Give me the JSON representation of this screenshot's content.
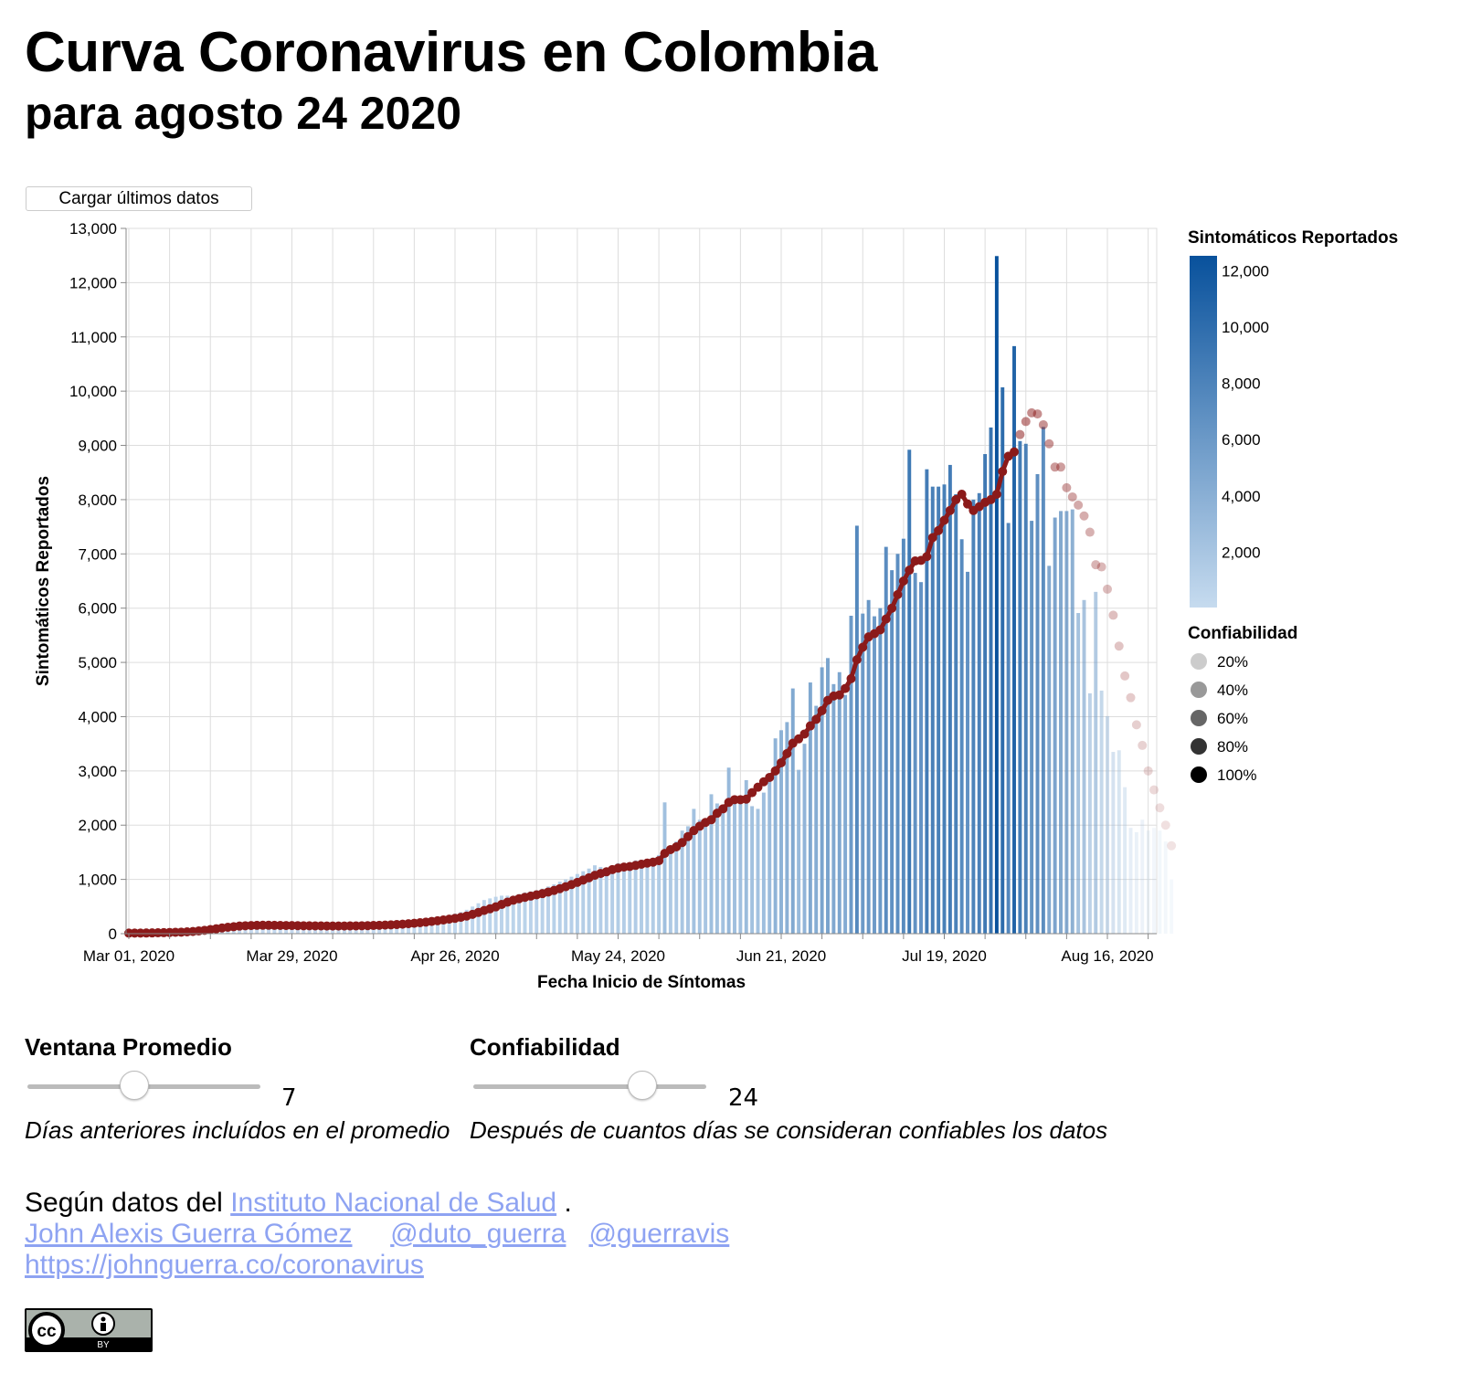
{
  "header": {
    "title": "Curva Coronavirus en Colombia",
    "subtitle": "para agosto 24 2020"
  },
  "toolbar": {
    "load_label": "Cargar últimos datos"
  },
  "controls": {
    "window": {
      "title": "Ventana Promedio",
      "value": "7",
      "level": 0.45,
      "description": "Días anteriores incluídos en el promedio"
    },
    "reliability": {
      "title": "Confiabilidad",
      "value": "24",
      "level": 0.75,
      "description": "Después de cuantos días se consideran confiables los datos"
    }
  },
  "footer": {
    "source_prefix": "Según datos del",
    "source_link": "Instituto Nacional de Salud",
    "source_suffix": ".",
    "author_link": "John Alexis Guerra Gómez",
    "twitter1": "@duto_guerra",
    "twitter2": "@guerravis",
    "site_link": "https://johnguerra.co/coronavirus",
    "license_label": "BY"
  },
  "chart_data": {
    "type": "bar",
    "xlabel": "Fecha Inicio de Síntomas",
    "ylabel": "Sintomáticos Reportados",
    "ylim": [
      0,
      13000
    ],
    "y_ticks": [
      0,
      1000,
      2000,
      3000,
      4000,
      5000,
      6000,
      7000,
      8000,
      9000,
      10000,
      11000,
      12000,
      13000
    ],
    "x_start": "2020-03-01",
    "x_end": "2020-08-24",
    "x_tick_labels": [
      "Mar 01, 2020",
      "Mar 29, 2020",
      "Apr 26, 2020",
      "May 24, 2020",
      "Jun 21, 2020",
      "Jul 19, 2020",
      "Aug 16, 2020"
    ],
    "x_tick_dates": [
      "2020-03-01",
      "2020-03-29",
      "2020-04-26",
      "2020-05-24",
      "2020-06-21",
      "2020-07-19",
      "2020-08-16"
    ],
    "grid": true,
    "reliable_until": "2020-07-31",
    "series": [
      {
        "name": "Sintomáticos Reportados",
        "values": [
          10,
          10,
          10,
          15,
          20,
          20,
          25,
          30,
          35,
          40,
          50,
          70,
          90,
          110,
          120,
          130,
          140,
          145,
          150,
          155,
          160,
          160,
          160,
          155,
          150,
          150,
          150,
          148,
          145,
          145,
          140,
          140,
          140,
          140,
          140,
          140,
          145,
          145,
          150,
          150,
          155,
          160,
          165,
          170,
          180,
          190,
          200,
          210,
          220,
          235,
          250,
          265,
          280,
          300,
          320,
          340,
          370,
          400,
          440,
          500,
          560,
          620,
          650,
          680,
          700,
          700,
          700,
          730,
          760,
          780,
          800,
          830,
          870,
          910,
          960,
          1000,
          1050,
          1100,
          1150,
          1200,
          1260,
          1230,
          1200,
          1250,
          1300,
          1280,
          1300,
          1350,
          1360,
          1380,
          1400,
          1450,
          2420,
          1600,
          1700,
          1900,
          1980,
          2300,
          2100,
          2000,
          2570,
          2400,
          2300,
          3060,
          2500,
          2450,
          2830,
          2350,
          2300,
          2600,
          2900,
          3600,
          3750,
          3900,
          4520,
          3020,
          3500,
          4630,
          4200,
          4910,
          5080,
          4600,
          4820,
          4400,
          5860,
          7520,
          5900,
          6150,
          5850,
          6000,
          7130,
          6700,
          7000,
          7280,
          8920,
          6650,
          6480,
          8560,
          8240,
          8240,
          8280,
          8640,
          8100,
          7270,
          6670,
          8000,
          8120,
          8840,
          9330,
          12490,
          10070,
          7570,
          10830,
          9080,
          9030,
          7610,
          8470,
          9340,
          6780,
          7670,
          7790,
          7790,
          7820,
          5910,
          6150,
          4430,
          6300,
          4480,
          4010,
          3350,
          3380,
          2700,
          1950,
          1870,
          2100,
          1900,
          1950,
          1900,
          1700,
          1000
        ]
      },
      {
        "name": "Promedio",
        "values": [
          10,
          11,
          11,
          12,
          14,
          16,
          18,
          21,
          25,
          28,
          34,
          40,
          50,
          62,
          76,
          90,
          105,
          118,
          128,
          140,
          146,
          150,
          153,
          155,
          155,
          153,
          152,
          150,
          149,
          148,
          146,
          145,
          144,
          143,
          142,
          141,
          141,
          142,
          143,
          144,
          146,
          148,
          151,
          154,
          158,
          163,
          168,
          175,
          183,
          192,
          202,
          213,
          225,
          238,
          252,
          267,
          283,
          302,
          325,
          356,
          391,
          427,
          458,
          494,
          538,
          580,
          616,
          645,
          670,
          692,
          716,
          738,
          767,
          797,
          830,
          866,
          905,
          945,
          988,
          1030,
          1076,
          1110,
          1140,
          1180,
          1208,
          1227,
          1238,
          1258,
          1280,
          1301,
          1318,
          1345,
          1480,
          1550,
          1600,
          1680,
          1790,
          1900,
          1980,
          2050,
          2100,
          2220,
          2300,
          2420,
          2470,
          2470,
          2480,
          2600,
          2700,
          2800,
          2880,
          3000,
          3150,
          3320,
          3510,
          3590,
          3680,
          3830,
          3950,
          4110,
          4300,
          4380,
          4400,
          4520,
          4700,
          5050,
          5280,
          5470,
          5530,
          5600,
          5800,
          6000,
          6250,
          6500,
          6700,
          6870,
          6880,
          6950,
          7300,
          7430,
          7620,
          7800,
          8000,
          8100,
          7920,
          7800,
          7870,
          7950,
          8000,
          8100,
          8520,
          8800,
          8880,
          9200,
          9440,
          9600,
          9580,
          9380,
          9030,
          8600,
          8600,
          8220,
          8050,
          7900,
          7700,
          7400,
          6800,
          6760,
          6350,
          5870,
          5300,
          4750,
          4350,
          3850,
          3470,
          3000,
          2650,
          2320,
          2000,
          1620
        ]
      }
    ],
    "legend_color": {
      "title": "Sintomáticos Reportados",
      "ticks": [
        2000,
        4000,
        6000,
        8000,
        10000,
        12000
      ],
      "range": [
        "#c6dbef",
        "#08519c"
      ],
      "placement": "right"
    },
    "legend_opacity": {
      "title": "Confiabilidad",
      "items": [
        "20%",
        "40%",
        "60%",
        "80%",
        "100%"
      ],
      "placement": "right"
    },
    "line_color": "#8b1a1a"
  }
}
